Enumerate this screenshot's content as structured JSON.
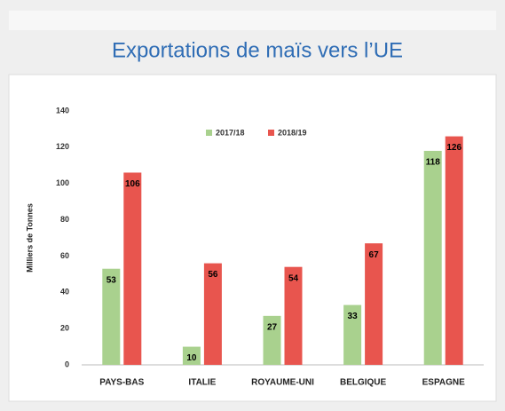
{
  "chart_data": {
    "type": "bar",
    "title": "Exportations de maïs vers l’UE",
    "y_label": "Milliers de Tonnes",
    "categories": [
      "PAYS-BAS",
      "ITALIE",
      "ROYAUME-UNI",
      "BELGIQUE",
      "ESPAGNE"
    ],
    "series": [
      {
        "name": "2017/18",
        "color": "#a9d18e",
        "values": [
          53,
          10,
          27,
          33,
          118
        ]
      },
      {
        "name": "2018/19",
        "color": "#e8554e",
        "values": [
          106,
          56,
          54,
          67,
          126
        ]
      }
    ],
    "ylim": [
      0,
      140
    ],
    "yticks": [
      0,
      20,
      40,
      60,
      80,
      100,
      120,
      140
    ],
    "grid": false,
    "legend": "top"
  }
}
